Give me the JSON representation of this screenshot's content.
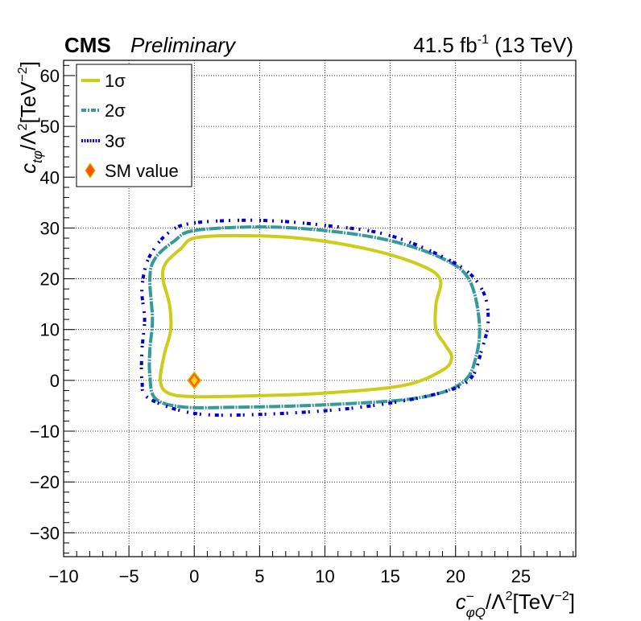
{
  "chart_data": {
    "type": "contour",
    "header": {
      "experiment": "CMS",
      "status": "Preliminary",
      "lumi": "41.5 fb",
      "lumi_exp": "-1",
      "energy": " (13 TeV)"
    },
    "xlabel": {
      "base": "c",
      "sup": "−",
      "sub": "φQ",
      "rest": "/Λ",
      "rest_sup": "2",
      "unit": "[TeV",
      "unit_sup": "−2",
      "unit_close": "]"
    },
    "ylabel": {
      "base": "c",
      "sub": "tφ",
      "rest": "/Λ",
      "rest_sup": "2",
      "unit": "[TeV",
      "unit_sup": "−2",
      "unit_close": "]"
    },
    "xlim": [
      -10,
      29.2
    ],
    "ylim": [
      -34.7,
      63
    ],
    "xticks": [
      -10,
      -5,
      0,
      5,
      10,
      15,
      20,
      25
    ],
    "xtick_labels": [
      "−10",
      "−5",
      "0",
      "5",
      "10",
      "15",
      "20",
      "25"
    ],
    "yticks": [
      -30,
      -20,
      -10,
      0,
      10,
      20,
      30,
      40,
      50,
      60
    ],
    "ytick_labels": [
      "−30",
      "−20",
      "−10",
      "0",
      "10",
      "20",
      "30",
      "40",
      "50",
      "60"
    ],
    "grid": true,
    "legend_position": "top-left",
    "legend": [
      {
        "label": "1σ",
        "color": "#cccc19"
      },
      {
        "label": "2σ",
        "color": "#36999a"
      },
      {
        "label": "3σ",
        "color": "#0000cc"
      },
      {
        "label": "SM value",
        "color": "#ff5500"
      }
    ],
    "sm_point": {
      "x": 0,
      "y": 0
    },
    "series": [
      {
        "name": "1σ",
        "color": "#cccc19",
        "points": [
          [
            0,
            28
          ],
          [
            3,
            28.5
          ],
          [
            8,
            28
          ],
          [
            13,
            26
          ],
          [
            17,
            23
          ],
          [
            18.8,
            20
          ],
          [
            18.5,
            15
          ],
          [
            18.5,
            10
          ],
          [
            19.2,
            7
          ],
          [
            19.7,
            4.5
          ],
          [
            19,
            2
          ],
          [
            16,
            -1
          ],
          [
            10,
            -2.5
          ],
          [
            5,
            -3
          ],
          [
            0,
            -3.2
          ],
          [
            -2,
            -2.5
          ],
          [
            -2.6,
            0
          ],
          [
            -2.3,
            5
          ],
          [
            -1.8,
            10
          ],
          [
            -1.9,
            15
          ],
          [
            -2.4,
            20
          ],
          [
            -2.2,
            23
          ],
          [
            -1,
            26
          ],
          [
            0,
            28
          ]
        ]
      },
      {
        "name": "2σ",
        "color": "#36999a",
        "points": [
          [
            0,
            29.5
          ],
          [
            5,
            30.2
          ],
          [
            10,
            29.5
          ],
          [
            15,
            27.5
          ],
          [
            19,
            24
          ],
          [
            21,
            20
          ],
          [
            21.8,
            12
          ],
          [
            21.6,
            5
          ],
          [
            20.5,
            -0.5
          ],
          [
            17,
            -3.5
          ],
          [
            10,
            -4.8
          ],
          [
            3,
            -5.3
          ],
          [
            -1,
            -5.2
          ],
          [
            -3,
            -3.5
          ],
          [
            -3.4,
            1
          ],
          [
            -3.4,
            6
          ],
          [
            -3.2,
            12
          ],
          [
            -3.4,
            20
          ],
          [
            -3,
            24
          ],
          [
            -1.5,
            27.5
          ],
          [
            0,
            29.5
          ]
        ]
      },
      {
        "name": "3σ",
        "color": "#0000cc",
        "points": [
          [
            0,
            31
          ],
          [
            5,
            31.5
          ],
          [
            10,
            30.5
          ],
          [
            15,
            28.5
          ],
          [
            20,
            23
          ],
          [
            22,
            18
          ],
          [
            22.5,
            12
          ],
          [
            22,
            6
          ],
          [
            21,
            0
          ],
          [
            18,
            -3
          ],
          [
            12,
            -5.5
          ],
          [
            5,
            -6.7
          ],
          [
            0,
            -6.5
          ],
          [
            -3.5,
            -3.5
          ],
          [
            -4,
            0
          ],
          [
            -4,
            6
          ],
          [
            -3.8,
            12
          ],
          [
            -4,
            18
          ],
          [
            -3.5,
            24
          ],
          [
            -2,
            29
          ],
          [
            0,
            31
          ]
        ]
      }
    ]
  }
}
